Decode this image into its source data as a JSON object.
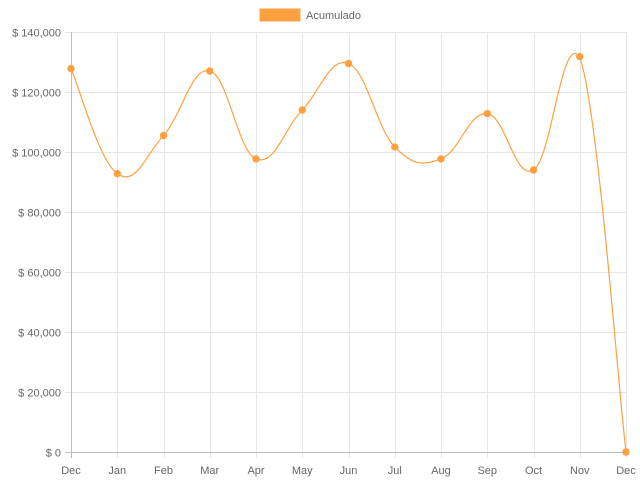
{
  "chart_data": {
    "type": "line",
    "categories": [
      "Dec",
      "Jan",
      "Feb",
      "Mar",
      "Apr",
      "May",
      "Jun",
      "Jul",
      "Aug",
      "Sep",
      "Oct",
      "Nov",
      "Dec"
    ],
    "series": [
      {
        "name": "Acumulado",
        "color": "#ffa040",
        "values": [
          127800,
          92800,
          105500,
          127000,
          97700,
          114000,
          129500,
          101700,
          97700,
          112800,
          94000,
          131800,
          0
        ]
      }
    ],
    "ylim": [
      0,
      140000
    ],
    "yticks": [
      0,
      20000,
      40000,
      60000,
      80000,
      100000,
      120000,
      140000
    ],
    "ytick_labels": [
      "$ 0",
      "$ 20,000",
      "$ 40,000",
      "$ 60,000",
      "$ 80,000",
      "$ 100,000",
      "$ 120,000",
      "$ 140,000"
    ],
    "legend_position": "top-center",
    "grid": true,
    "curve": "smooth"
  }
}
